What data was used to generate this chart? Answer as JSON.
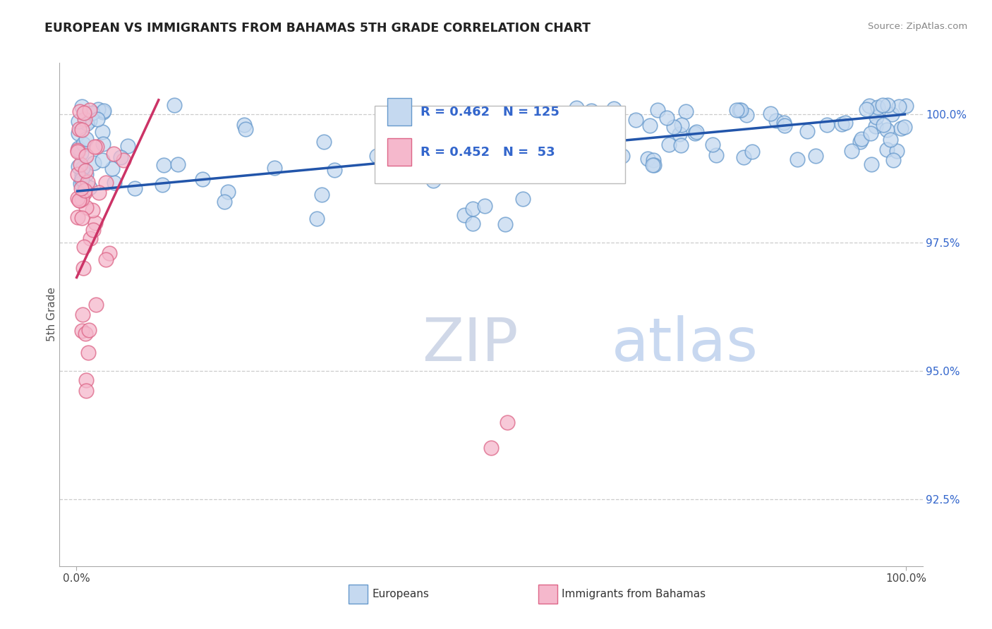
{
  "title": "EUROPEAN VS IMMIGRANTS FROM BAHAMAS 5TH GRADE CORRELATION CHART",
  "source": "Source: ZipAtlas.com",
  "ylabel": "5th Grade",
  "ytick_values": [
    92.5,
    95.0,
    97.5,
    100.0
  ],
  "ytick_labels_right": [
    "92.5%",
    "95.0%",
    "97.5%",
    "100.0%"
  ],
  "ymin": 91.2,
  "ymax": 101.0,
  "xmin": -2.0,
  "xmax": 102.0,
  "legend_blue_r": "R = 0.462",
  "legend_blue_n": "N = 125",
  "legend_pink_r": "R = 0.452",
  "legend_pink_n": "N =  53",
  "legend_label_blue": "Europeans",
  "legend_label_pink": "Immigrants from Bahamas",
  "trend_blue_color": "#2255AA",
  "trend_pink_color": "#CC3366",
  "watermark_zip": "ZIP",
  "watermark_atlas": "atlas",
  "background_color": "#ffffff"
}
